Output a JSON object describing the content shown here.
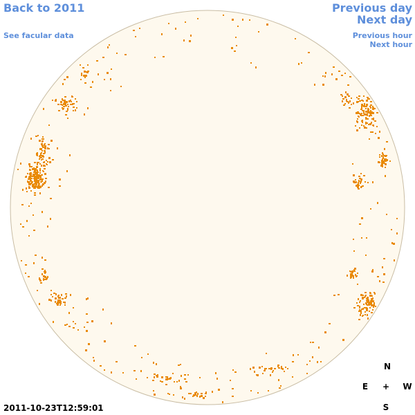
{
  "colors": {
    "link": "#5e8fdb",
    "disk_fill": "#fef9ee",
    "disk_stroke": "#c9bda4",
    "facula": "#e98a07"
  },
  "nav": {
    "back_to_year": "Back to 2011",
    "facular_data": "See facular data",
    "previous_day": "Previous day",
    "next_day": "Next day",
    "previous_hour": "Previous hour",
    "next_hour": "Next hour"
  },
  "compass": {
    "north": "N",
    "south": "S",
    "east": "E",
    "west": "W",
    "center": "+"
  },
  "timestamp": "2011-10-23T12:59:01"
}
